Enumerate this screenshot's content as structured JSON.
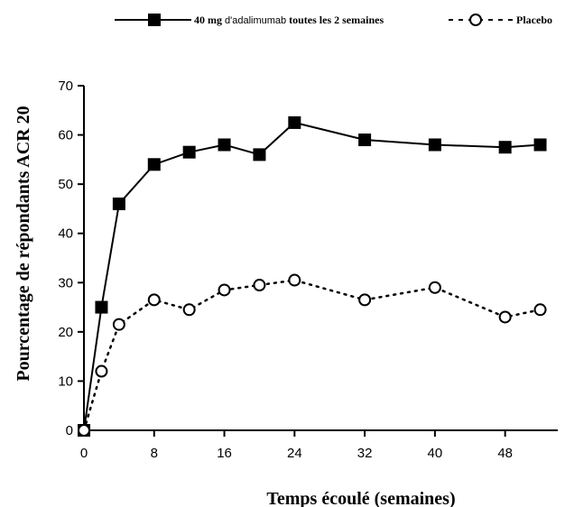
{
  "chart_data": {
    "type": "line",
    "xlabel": "Temps écoulé (semaines)",
    "ylabel": "Pourcentage de répondants ACR 20",
    "xlim": [
      0,
      54
    ],
    "ylim": [
      0,
      70
    ],
    "xticks": [
      0,
      8,
      16,
      24,
      32,
      40,
      48
    ],
    "xtick_labels": [
      "0",
      "8",
      "16",
      "24",
      "32",
      "40",
      "48"
    ],
    "yticks": [
      0,
      10,
      20,
      30,
      40,
      50,
      60,
      70
    ],
    "ytick_labels": [
      "0",
      "10",
      "20",
      "30",
      "40",
      "50",
      "60",
      "70"
    ],
    "grid": false,
    "legend_position": "top",
    "legend": {
      "entry1_bold1": "40 mg",
      "entry1_light": "d'adalimumab",
      "entry1_bold2": "toutes les 2 semaines",
      "entry2": "Placebo"
    },
    "series": [
      {
        "name": "40 mg d'adalimumab toutes les 2 semaines",
        "marker": "filled-square",
        "line_style": "solid",
        "color": "#000000",
        "x": [
          0,
          2,
          4,
          8,
          12,
          16,
          20,
          24,
          32,
          40,
          48,
          52
        ],
        "y": [
          0,
          25,
          46,
          54,
          56.5,
          58,
          56,
          62.5,
          59,
          58,
          57.5,
          58
        ]
      },
      {
        "name": "Placebo",
        "marker": "open-circle",
        "line_style": "dotted",
        "color": "#000000",
        "x": [
          0,
          2,
          4,
          8,
          12,
          16,
          20,
          24,
          32,
          40,
          48,
          52
        ],
        "y": [
          0,
          12,
          21.5,
          26.5,
          24.5,
          28.5,
          29.5,
          30.5,
          26.5,
          29,
          23,
          24.5
        ]
      }
    ]
  }
}
